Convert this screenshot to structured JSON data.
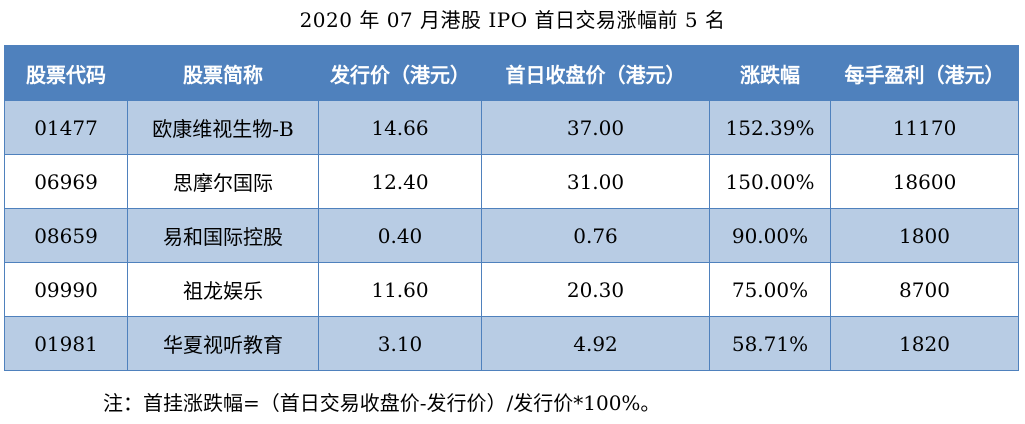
{
  "title": "2020 年 07 月港股 IPO 首日交易涨幅前 5 名",
  "table": {
    "headers": [
      "股票代码",
      "股票简称",
      "发行价（港元）",
      "首日收盘价（港元）",
      "涨跌幅",
      "每手盈利（港元）"
    ],
    "rows": [
      [
        "01477",
        "欧康维视生物-B",
        "14.66",
        "37.00",
        "152.39%",
        "11170"
      ],
      [
        "06969",
        "思摩尔国际",
        "12.40",
        "31.00",
        "150.00%",
        "18600"
      ],
      [
        "08659",
        "易和国际控股",
        "0.40",
        "0.76",
        "90.00%",
        "1800"
      ],
      [
        "09990",
        "祖龙娱乐",
        "11.60",
        "20.30",
        "75.00%",
        "8700"
      ],
      [
        "01981",
        "华夏视听教育",
        "3.10",
        "4.92",
        "58.71%",
        "1820"
      ]
    ]
  },
  "note": "注：首挂涨跌幅=（首日交易收盘价-发行价）/发行价*100%。",
  "colors": {
    "header_bg": "#4f81bd",
    "header_text": "#ffffff",
    "row_alt_bg": "#b8cce4",
    "row_bg": "#ffffff",
    "border": "#4f81bd"
  }
}
